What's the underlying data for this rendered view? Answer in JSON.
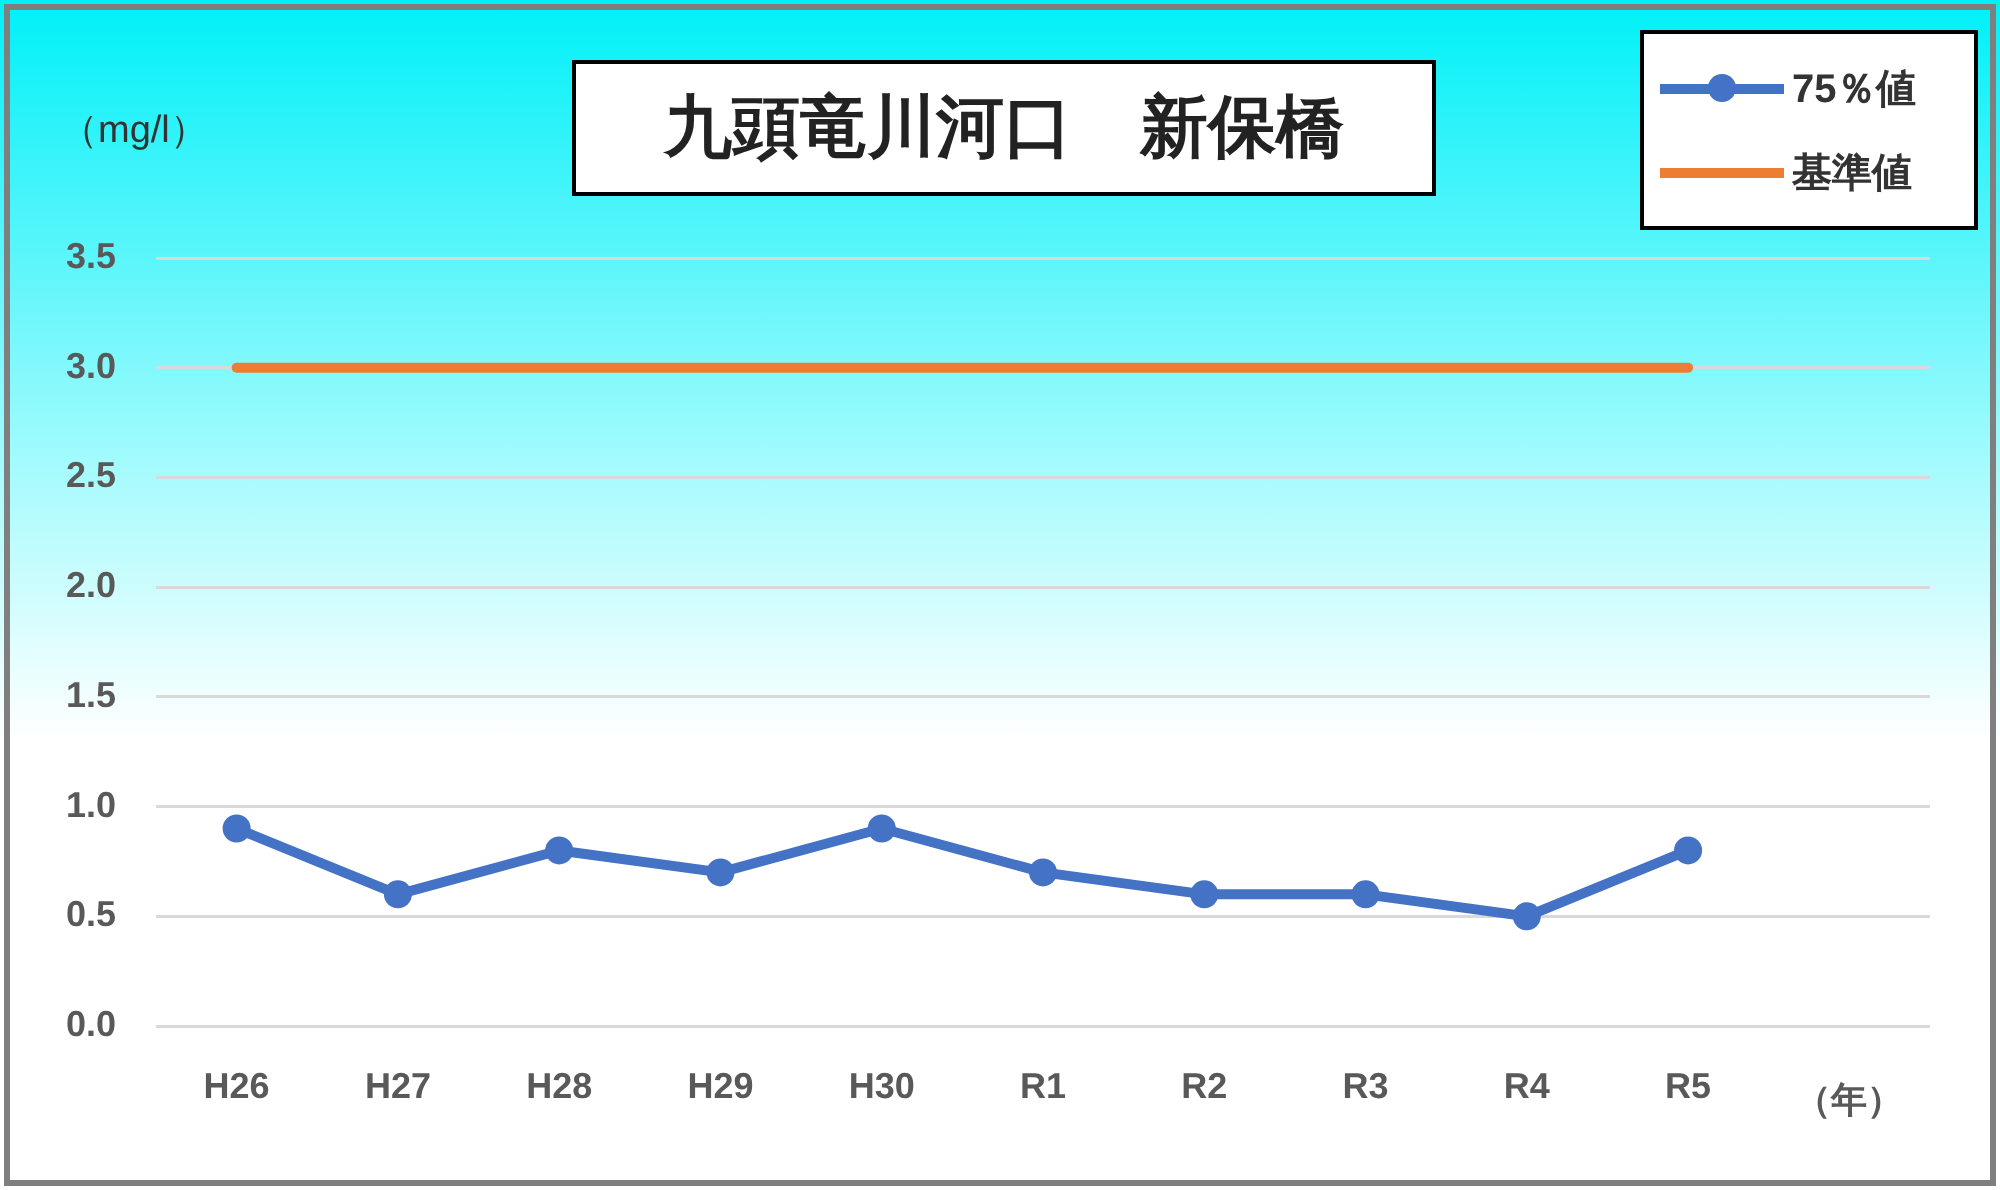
{
  "chart_data": {
    "type": "line",
    "title": "九頭竜川河口　新保橋",
    "ylabel": "（mg/l）",
    "xlabel": "（年）",
    "categories": [
      "H26",
      "H27",
      "H28",
      "H29",
      "H30",
      "R1",
      "R2",
      "R3",
      "R4",
      "R5"
    ],
    "series": [
      {
        "name": "75％値",
        "color": "#4472c4",
        "values": [
          0.9,
          0.6,
          0.8,
          0.7,
          0.9,
          0.7,
          0.6,
          0.6,
          0.5,
          0.8
        ],
        "marker": "circle"
      },
      {
        "name": "基準値",
        "color": "#ed7d31",
        "values": [
          3.0,
          3.0,
          3.0,
          3.0,
          3.0,
          3.0,
          3.0,
          3.0,
          3.0,
          3.0
        ],
        "marker": "none"
      }
    ],
    "ylim": [
      0,
      3.5
    ],
    "yticks": [
      {
        "value": 0,
        "label": "0.0"
      },
      0.5,
      {
        "value": 1,
        "label": "1.0"
      },
      1.5,
      {
        "value": 2,
        "label": "2.0"
      },
      2.5,
      {
        "value": 3,
        "label": "3.0"
      },
      3.5
    ],
    "grid": "y",
    "legend": "top right"
  }
}
